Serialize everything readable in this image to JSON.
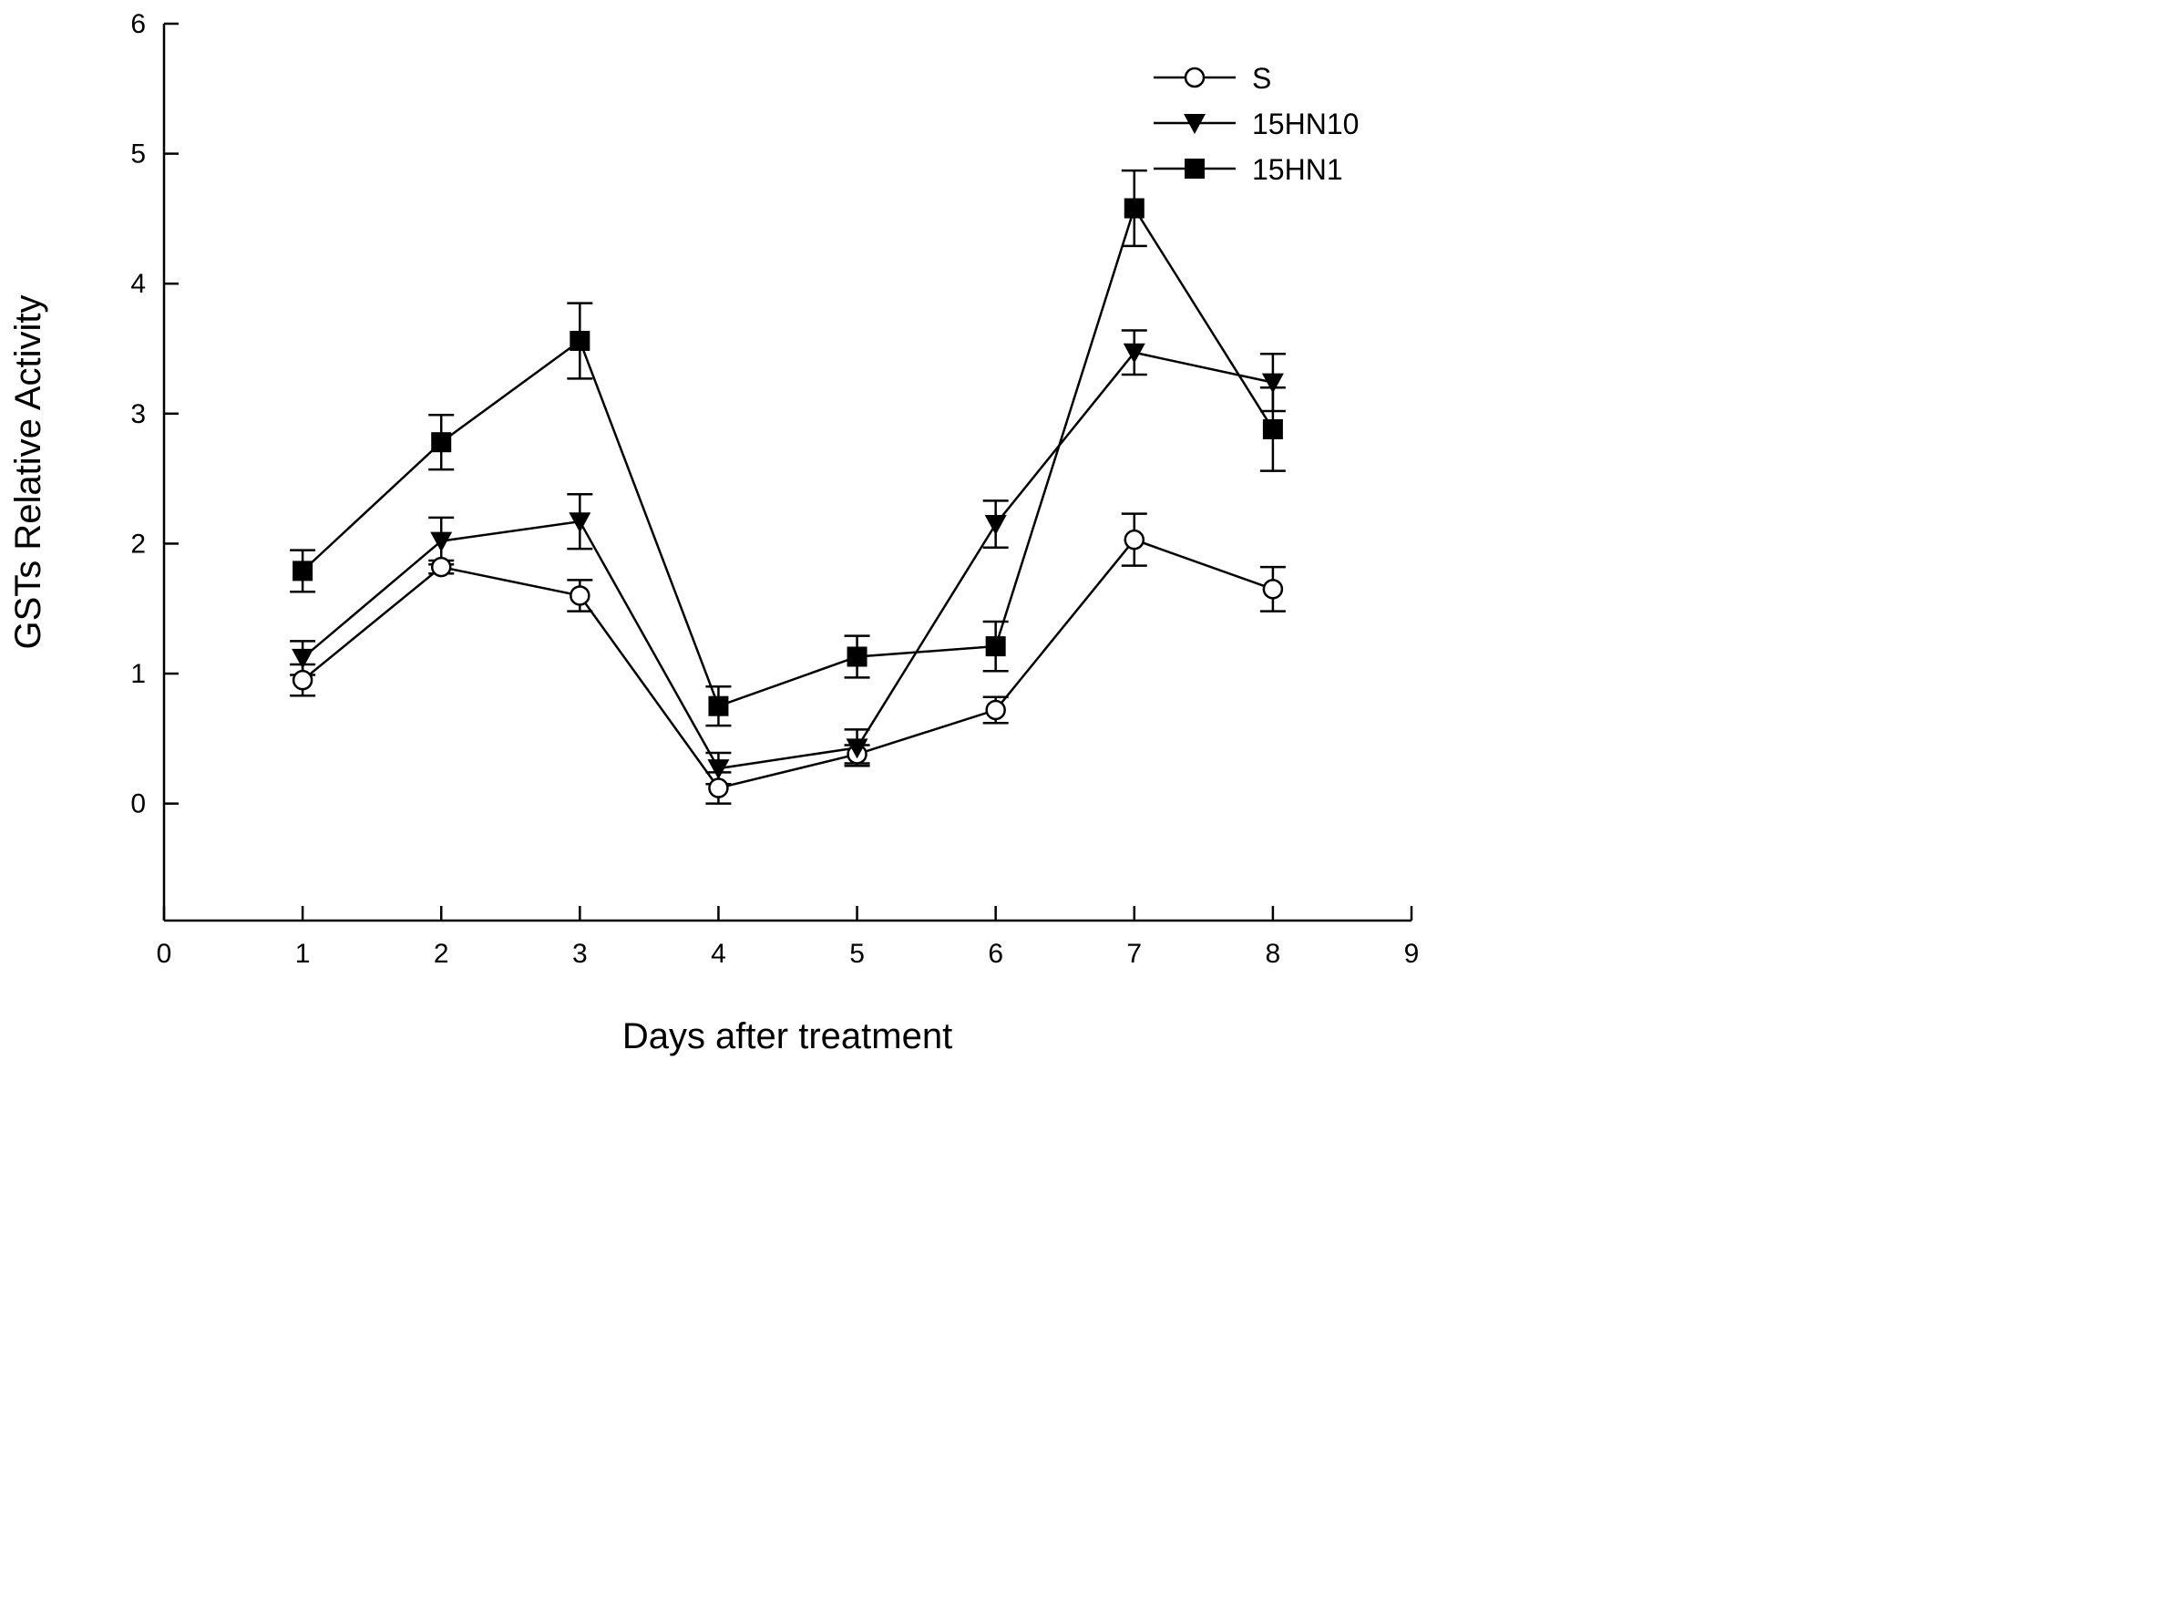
{
  "chart_data": {
    "type": "line",
    "title": "",
    "xlabel": "Days after treatment",
    "ylabel": "GSTs Relative Activity",
    "xlim": [
      0,
      9
    ],
    "ylim": [
      -0.9,
      6
    ],
    "xticks": [
      0,
      1,
      2,
      3,
      4,
      5,
      6,
      7,
      8,
      9
    ],
    "yticks": [
      0,
      1,
      2,
      3,
      4,
      5,
      6
    ],
    "grid": false,
    "legend_position": "top-right",
    "x": [
      1,
      2,
      3,
      4,
      5,
      6,
      7,
      8
    ],
    "series": [
      {
        "name": "S",
        "marker": "open-circle",
        "values": [
          0.95,
          1.82,
          1.6,
          0.12,
          0.38,
          0.72,
          2.03,
          1.65
        ],
        "errors": [
          0.12,
          0.05,
          0.12,
          0.12,
          0.07,
          0.1,
          0.2,
          0.17
        ]
      },
      {
        "name": "15HN10",
        "marker": "filled-triangle-down",
        "values": [
          1.12,
          2.02,
          2.17,
          0.27,
          0.43,
          2.15,
          3.47,
          3.24
        ],
        "errors": [
          0.13,
          0.18,
          0.21,
          0.12,
          0.14,
          0.18,
          0.17,
          0.22
        ]
      },
      {
        "name": "15HN1",
        "marker": "filled-square",
        "values": [
          1.79,
          2.78,
          3.56,
          0.75,
          1.13,
          1.21,
          4.58,
          2.88
        ],
        "errors": [
          0.16,
          0.21,
          0.29,
          0.15,
          0.16,
          0.19,
          0.29,
          0.32
        ]
      }
    ]
  }
}
